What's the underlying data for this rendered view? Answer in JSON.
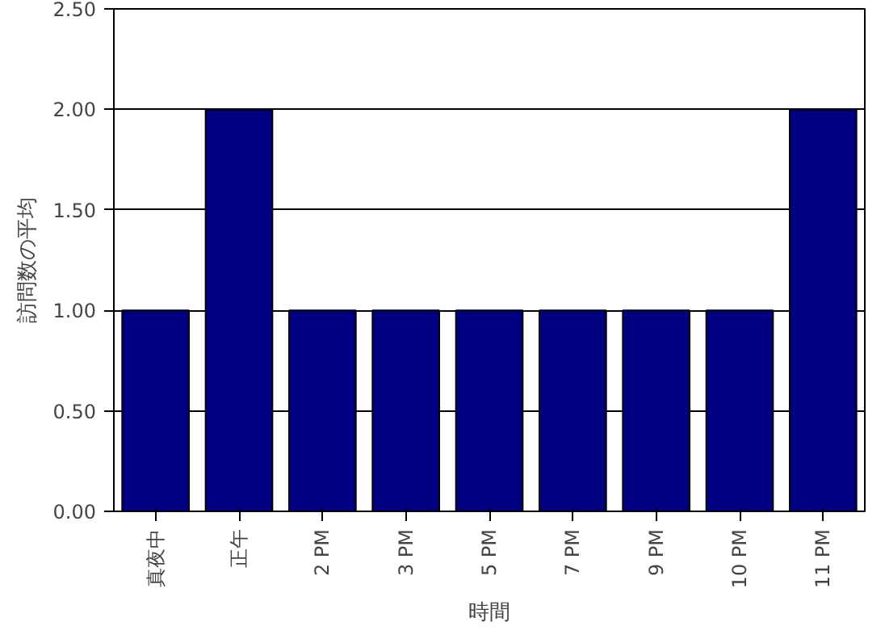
{
  "chart_data": {
    "type": "bar",
    "xlabel": "時間",
    "ylabel": "訪問数の平均",
    "categories": [
      "真夜中",
      "正午",
      "2 PM",
      "3 PM",
      "5 PM",
      "7 PM",
      "9 PM",
      "10 PM",
      "11 PM"
    ],
    "values": [
      1,
      2,
      1,
      1,
      1,
      1,
      1,
      1,
      2
    ],
    "color": "#000080",
    "ylim": [
      0,
      2.5
    ],
    "yticks": [
      {
        "value": 0,
        "label": "0.00"
      },
      {
        "value": 0.5,
        "label": "0.50"
      },
      {
        "value": 1,
        "label": "1.00"
      },
      {
        "value": 1.5,
        "label": "1.50"
      },
      {
        "value": 2,
        "label": "2.00"
      },
      {
        "value": 2.5,
        "label": "2.50"
      }
    ],
    "grid": "y"
  }
}
